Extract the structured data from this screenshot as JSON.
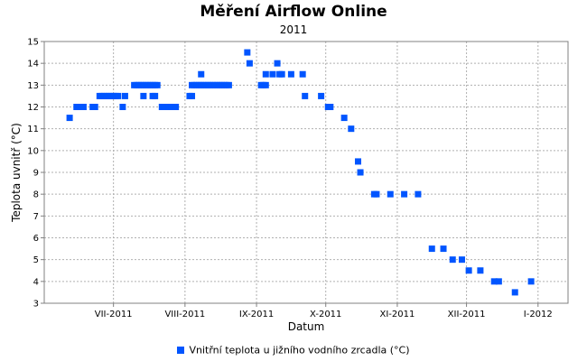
{
  "chart_data": {
    "type": "scatter",
    "title": "Měření Airflow Online",
    "subtitle": "2011",
    "xlabel": "Datum",
    "ylabel": "Teplota uvnitř (°C)",
    "ylim": [
      3,
      15
    ],
    "yticks": [
      3,
      4,
      5,
      6,
      7,
      8,
      9,
      10,
      11,
      12,
      13,
      14,
      15
    ],
    "xlim": [
      "2011-06-01",
      "2012-01-14"
    ],
    "xticks": [
      {
        "date": "2011-07-01",
        "label": "VII-2011"
      },
      {
        "date": "2011-08-01",
        "label": "VIII-2011"
      },
      {
        "date": "2011-09-01",
        "label": "IX-2011"
      },
      {
        "date": "2011-10-01",
        "label": "X-2011"
      },
      {
        "date": "2011-11-01",
        "label": "XI-2011"
      },
      {
        "date": "2011-12-01",
        "label": "XII-2011"
      },
      {
        "date": "2012-01-01",
        "label": "I-2012"
      }
    ],
    "grid": true,
    "legend_position": "bottom",
    "series": [
      {
        "name": "Vnitřní teplota u jižního vodního zrcadla (°C)",
        "color": "#0055ff",
        "points": [
          [
            "2011-06-12",
            11.5
          ],
          [
            "2011-06-15",
            12
          ],
          [
            "2011-06-16",
            12
          ],
          [
            "2011-06-17",
            12
          ],
          [
            "2011-06-18",
            12
          ],
          [
            "2011-06-22",
            12
          ],
          [
            "2011-06-23",
            12
          ],
          [
            "2011-06-25",
            12.5
          ],
          [
            "2011-06-26",
            12.5
          ],
          [
            "2011-06-27",
            12.5
          ],
          [
            "2011-06-28",
            12.5
          ],
          [
            "2011-06-29",
            12.5
          ],
          [
            "2011-06-30",
            12.5
          ],
          [
            "2011-07-01",
            12.5
          ],
          [
            "2011-07-02",
            12.5
          ],
          [
            "2011-07-03",
            12.5
          ],
          [
            "2011-07-05",
            12
          ],
          [
            "2011-07-06",
            12.5
          ],
          [
            "2011-07-10",
            13
          ],
          [
            "2011-07-11",
            13
          ],
          [
            "2011-07-12",
            13
          ],
          [
            "2011-07-13",
            13
          ],
          [
            "2011-07-14",
            13
          ],
          [
            "2011-07-15",
            13
          ],
          [
            "2011-07-16",
            13
          ],
          [
            "2011-07-17",
            13
          ],
          [
            "2011-07-18",
            13
          ],
          [
            "2011-07-19",
            13
          ],
          [
            "2011-07-20",
            13
          ],
          [
            "2011-07-14",
            12.5
          ],
          [
            "2011-07-18",
            12.5
          ],
          [
            "2011-07-19",
            12.5
          ],
          [
            "2011-07-22",
            12
          ],
          [
            "2011-07-23",
            12
          ],
          [
            "2011-07-24",
            12
          ],
          [
            "2011-07-25",
            12
          ],
          [
            "2011-07-26",
            12
          ],
          [
            "2011-07-27",
            12
          ],
          [
            "2011-07-28",
            12
          ],
          [
            "2011-08-03",
            12.5
          ],
          [
            "2011-08-04",
            12.5
          ],
          [
            "2011-08-04",
            13
          ],
          [
            "2011-08-05",
            13
          ],
          [
            "2011-08-06",
            13
          ],
          [
            "2011-08-07",
            13
          ],
          [
            "2011-08-08",
            13
          ],
          [
            "2011-08-09",
            13
          ],
          [
            "2011-08-10",
            13
          ],
          [
            "2011-08-11",
            13
          ],
          [
            "2011-08-12",
            13
          ],
          [
            "2011-08-13",
            13
          ],
          [
            "2011-08-14",
            13
          ],
          [
            "2011-08-15",
            13
          ],
          [
            "2011-08-16",
            13
          ],
          [
            "2011-08-17",
            13
          ],
          [
            "2011-08-18",
            13
          ],
          [
            "2011-08-19",
            13
          ],
          [
            "2011-08-20",
            13
          ],
          [
            "2011-08-08",
            13.5
          ],
          [
            "2011-08-28",
            14.5
          ],
          [
            "2011-08-29",
            14
          ],
          [
            "2011-09-03",
            13
          ],
          [
            "2011-09-04",
            13
          ],
          [
            "2011-09-05",
            13
          ],
          [
            "2011-09-05",
            13.5
          ],
          [
            "2011-09-08",
            13.5
          ],
          [
            "2011-09-11",
            13.5
          ],
          [
            "2011-09-12",
            13.5
          ],
          [
            "2011-09-16",
            13.5
          ],
          [
            "2011-09-21",
            13.5
          ],
          [
            "2011-09-10",
            14
          ],
          [
            "2011-09-22",
            12.5
          ],
          [
            "2011-09-29",
            12.5
          ],
          [
            "2011-10-02",
            12
          ],
          [
            "2011-10-03",
            12
          ],
          [
            "2011-10-09",
            11.5
          ],
          [
            "2011-10-12",
            11
          ],
          [
            "2011-10-15",
            9.5
          ],
          [
            "2011-10-16",
            9
          ],
          [
            "2011-10-22",
            8
          ],
          [
            "2011-10-23",
            8
          ],
          [
            "2011-10-29",
            8
          ],
          [
            "2011-11-04",
            8
          ],
          [
            "2011-11-10",
            8
          ],
          [
            "2011-11-16",
            5.5
          ],
          [
            "2011-11-21",
            5.5
          ],
          [
            "2011-11-25",
            5
          ],
          [
            "2011-11-29",
            5
          ],
          [
            "2011-12-02",
            4.5
          ],
          [
            "2011-12-07",
            4.5
          ],
          [
            "2011-12-13",
            4
          ],
          [
            "2011-12-15",
            4
          ],
          [
            "2011-12-22",
            3.5
          ],
          [
            "2011-12-29",
            4
          ]
        ]
      }
    ]
  }
}
